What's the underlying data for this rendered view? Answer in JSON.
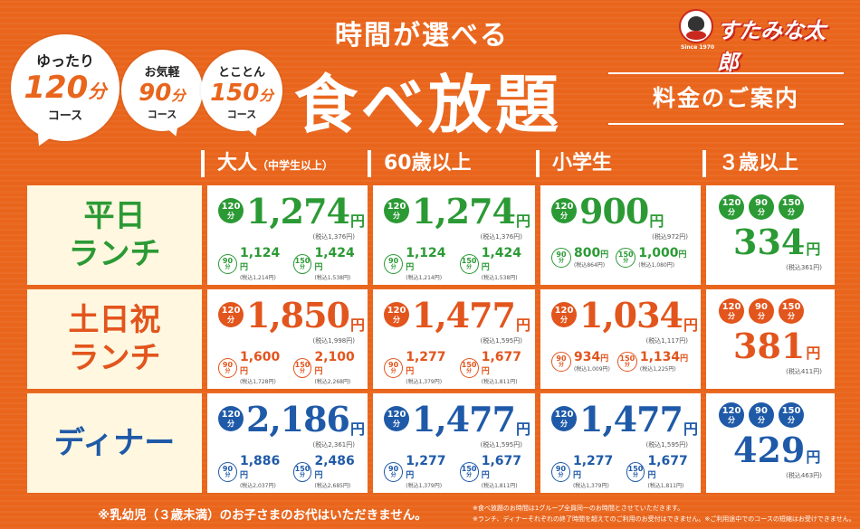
{
  "brand": {
    "name": "すたみな太郎",
    "since": "Since 1970"
  },
  "bubbles": [
    {
      "top": "ゆったり",
      "num": "120",
      "unit": "分",
      "bottom": "コース"
    },
    {
      "top": "お気軽",
      "num": "90",
      "unit": "分",
      "bottom": "コース"
    },
    {
      "top": "とことん",
      "num": "150",
      "unit": "分",
      "bottom": "コース"
    }
  ],
  "subtitle": "時間が選べる",
  "title": "食べ放題",
  "guide": "料金のご案内",
  "columns": [
    {
      "label": "大人",
      "small": "（中学生以上）"
    },
    {
      "label": "60歳以上"
    },
    {
      "label": "小学生"
    },
    {
      "label": "３歳以上"
    }
  ],
  "rows": [
    {
      "label_line1": "平日",
      "label_line2": "ランチ",
      "color": "#2b9a35",
      "cells": [
        {
          "main": "1,274",
          "main_tax": "(税込1,376円)",
          "s90": "1,124",
          "s90_tax": "(税込1,214円)",
          "s150": "1,424",
          "s150_tax": "(税込1,538円)"
        },
        {
          "main": "1,274",
          "main_tax": "(税込1,376円)",
          "s90": "1,124",
          "s90_tax": "(税込1,214円)",
          "s150": "1,424",
          "s150_tax": "(税込1,538円)"
        },
        {
          "main": "900",
          "main_tax": "(税込972円)",
          "s90": "800",
          "s90_tax": "(税込864円)",
          "s150": "1,000",
          "s150_tax": "(税込1,080円)"
        }
      ],
      "kid": {
        "price": "334",
        "tax": "(税込361円)"
      }
    },
    {
      "label_line1": "土日祝",
      "label_line2": "ランチ",
      "color": "#e2551d",
      "cells": [
        {
          "main": "1,850",
          "main_tax": "(税込1,998円)",
          "s90": "1,600",
          "s90_tax": "(税込1,728円)",
          "s150": "2,100",
          "s150_tax": "(税込2,268円)"
        },
        {
          "main": "1,477",
          "main_tax": "(税込1,595円)",
          "s90": "1,277",
          "s90_tax": "(税込1,379円)",
          "s150": "1,677",
          "s150_tax": "(税込1,811円)"
        },
        {
          "main": "1,034",
          "main_tax": "(税込1,117円)",
          "s90": "934",
          "s90_tax": "(税込1,009円)",
          "s150": "1,134",
          "s150_tax": "(税込1,225円)"
        }
      ],
      "kid": {
        "price": "381",
        "tax": "(税込411円)"
      }
    },
    {
      "label_line1": "ディナー",
      "label_line2": "",
      "color": "#1f5aa8",
      "cells": [
        {
          "main": "2,186",
          "main_tax": "(税込2,361円)",
          "s90": "1,886",
          "s90_tax": "(税込2,037円)",
          "s150": "2,486",
          "s150_tax": "(税込2,685円)"
        },
        {
          "main": "1,477",
          "main_tax": "(税込1,595円)",
          "s90": "1,277",
          "s90_tax": "(税込1,379円)",
          "s150": "1,677",
          "s150_tax": "(税込1,811円)"
        },
        {
          "main": "1,477",
          "main_tax": "(税込1,595円)",
          "s90": "1,277",
          "s90_tax": "(税込1,379円)",
          "s150": "1,677",
          "s150_tax": "(税込1,811円)"
        }
      ],
      "kid": {
        "price": "429",
        "tax": "(税込463円)"
      }
    }
  ],
  "badge": {
    "b120": "120",
    "b90": "90",
    "b150": "150",
    "unit": "分",
    "yen": "円"
  },
  "note": "※乳幼児（３歳未満）のお子さまのお代はいただきません。",
  "fine1": "※食べ放題のお時間は1グループ全員同一のお時間とさせていただきます。",
  "fine2": "※ランチ、ディナーそれぞれの終了時間を超えてのご利用のお受付はできません。※ご利用途中でのコースの短縮はお受けできません。"
}
